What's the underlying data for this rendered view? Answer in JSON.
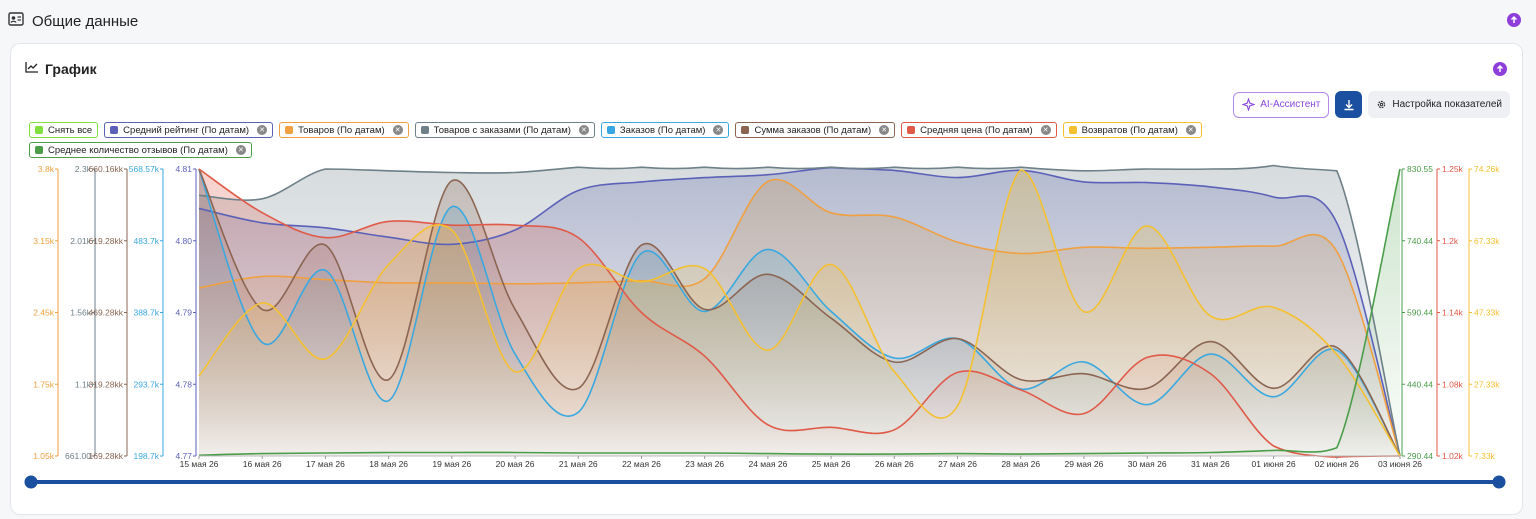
{
  "section": {
    "title": "Общие данные"
  },
  "card": {
    "title": "График"
  },
  "toolbar": {
    "ai_label": "AI-Ассистент",
    "settings_label": "Настройка показателей"
  },
  "chips": [
    {
      "label": "Снять все",
      "color": "#7fe040",
      "close": false
    },
    {
      "label": "Средний рейтинг (По датам)",
      "color": "#5b61b8",
      "close": true
    },
    {
      "label": "Товаров (По датам)",
      "color": "#f0a040",
      "close": true
    },
    {
      "label": "Товаров с заказами (По датам)",
      "color": "#6e8088",
      "close": true
    },
    {
      "label": "Заказов (По датам)",
      "color": "#3aa8e0",
      "close": true
    },
    {
      "label": "Сумма заказов (По датам)",
      "color": "#8b6552",
      "close": true
    },
    {
      "label": "Средняя цена (По датам)",
      "color": "#e05a48",
      "close": true
    },
    {
      "label": "Возвратов (По датам)",
      "color": "#f5c030",
      "close": true
    },
    {
      "label": "Среднее количество отзывов (По датам)",
      "color": "#4a9e4a",
      "close": true
    }
  ],
  "chart_data": {
    "type": "area",
    "categories": [
      "15 мая 26",
      "16 мая 26",
      "17 мая 26",
      "18 мая 26",
      "19 мая 26",
      "20 мая 26",
      "21 мая 26",
      "22 мая 26",
      "23 мая 26",
      "24 мая 26",
      "25 мая 26",
      "26 мая 26",
      "27 мая 26",
      "28 мая 26",
      "29 мая 26",
      "30 мая 26",
      "31 мая 26",
      "01 июня 26",
      "02 июня 26",
      "03 июня 26"
    ],
    "axes": [
      {
        "id": "a_tov",
        "side": "left",
        "color": "#f0a040",
        "ticks": [
          "3.8k",
          "3.15k",
          "2.45k",
          "1.75k",
          "1.05k"
        ]
      },
      {
        "id": "a_tz",
        "side": "left",
        "color": "#6e8088",
        "ticks": [
          "2.3k",
          "2.01k",
          "1.56k",
          "1.1k",
          "661.00"
        ]
      },
      {
        "id": "a_sum",
        "side": "left",
        "color": "#8b6552",
        "ticks": [
          "660.16kk",
          "619.28kk",
          "469.28kk",
          "319.28kk",
          "169.28kk"
        ]
      },
      {
        "id": "a_ord",
        "side": "left",
        "color": "#3aa8e0",
        "ticks": [
          "568.57k",
          "483.7k",
          "388.7k",
          "293.7k",
          "198.7k"
        ]
      },
      {
        "id": "a_rat",
        "side": "left",
        "color": "#5b61b8",
        "ticks": [
          "4.81",
          "4.80",
          "4.79",
          "4.78",
          "4.77"
        ]
      },
      {
        "id": "a_rev",
        "side": "right",
        "color": "#4a9e4a",
        "ticks": [
          "830.55",
          "740.44",
          "590.44",
          "440.44",
          "290.44"
        ]
      },
      {
        "id": "a_price",
        "side": "right",
        "color": "#e05a48",
        "ticks": [
          "1.25k",
          "1.2k",
          "1.14k",
          "1.08k",
          "1.02k"
        ]
      },
      {
        "id": "a_ret",
        "side": "right",
        "color": "#f5c030",
        "ticks": [
          "74.26k",
          "67.33k",
          "47.33k",
          "27.33k",
          "7.33k"
        ]
      }
    ],
    "series": [
      {
        "name": "Средний рейтинг (По датам)",
        "color": "#5b61b8",
        "ylim": [
          4.77,
          4.81
        ],
        "values": [
          4.8045,
          4.8025,
          4.8018,
          4.8005,
          4.7995,
          4.8015,
          4.807,
          4.8082,
          4.8088,
          4.8092,
          4.8102,
          4.8098,
          4.8088,
          4.8098,
          4.8082,
          4.8081,
          4.8075,
          4.8061,
          4.8025,
          4.77
        ]
      },
      {
        "name": "Товаров (По датам)",
        "color": "#f0a040",
        "ylim": [
          1.05,
          3.8
        ],
        "values": [
          2.66,
          2.77,
          2.74,
          2.71,
          2.71,
          2.7,
          2.71,
          2.73,
          2.75,
          3.68,
          3.38,
          3.34,
          3.1,
          2.99,
          3.05,
          3.04,
          3.05,
          3.06,
          3.01,
          1.05
        ]
      },
      {
        "name": "Товаров с заказами (По датам)",
        "color": "#6e8088",
        "ylim": [
          0.661,
          2.3
        ],
        "values": [
          2.15,
          2.13,
          2.3,
          2.29,
          2.28,
          2.28,
          2.31,
          2.31,
          2.31,
          2.31,
          2.31,
          2.31,
          2.31,
          2.31,
          2.29,
          2.3,
          2.3,
          2.32,
          2.29,
          0.661
        ]
      },
      {
        "name": "Заказов (По датам)",
        "color": "#3aa8e0",
        "ylim": [
          198.7,
          568.57
        ],
        "values": [
          568,
          345,
          438,
          270,
          520,
          330,
          255,
          460,
          385,
          465,
          385,
          325,
          350,
          285,
          320,
          265,
          330,
          275,
          335,
          198.7
        ]
      },
      {
        "name": "Сумма заказов (По датам)",
        "color": "#8b6552",
        "ylim": [
          169.28,
          660.16
        ],
        "values": [
          660,
          420,
          530,
          300,
          640,
          420,
          285,
          530,
          420,
          480,
          405,
          330,
          370,
          300,
          310,
          285,
          365,
          285,
          355,
          169.28
        ]
      },
      {
        "name": "Средняя цена (По датам)",
        "color": "#e05a48",
        "ylim": [
          1.02,
          1.25
        ],
        "values": [
          1.25,
          1.215,
          1.195,
          1.208,
          1.205,
          1.205,
          1.195,
          1.135,
          1.1,
          1.045,
          1.043,
          1.041,
          1.087,
          1.073,
          1.054,
          1.099,
          1.086,
          1.028,
          1.019,
          1.02
        ]
      },
      {
        "name": "Возвратов (По датам)",
        "color": "#f5c030",
        "ylim": [
          7.33,
          74.26
        ],
        "values": [
          26,
          43,
          30,
          52,
          60,
          27,
          51,
          48,
          51,
          32,
          52,
          27,
          19,
          74,
          41,
          61,
          40,
          42,
          31,
          7.33
        ]
      },
      {
        "name": "Среднее количество отзывов (По датам)",
        "color": "#4a9e4a",
        "ylim": [
          290.44,
          830.55
        ],
        "values": [
          292,
          295,
          296,
          297,
          297,
          297,
          296,
          296,
          296,
          295,
          294,
          294,
          295,
          294,
          295,
          296,
          297,
          301,
          306,
          830.55
        ]
      }
    ],
    "grid": false,
    "legend": "top-left"
  }
}
